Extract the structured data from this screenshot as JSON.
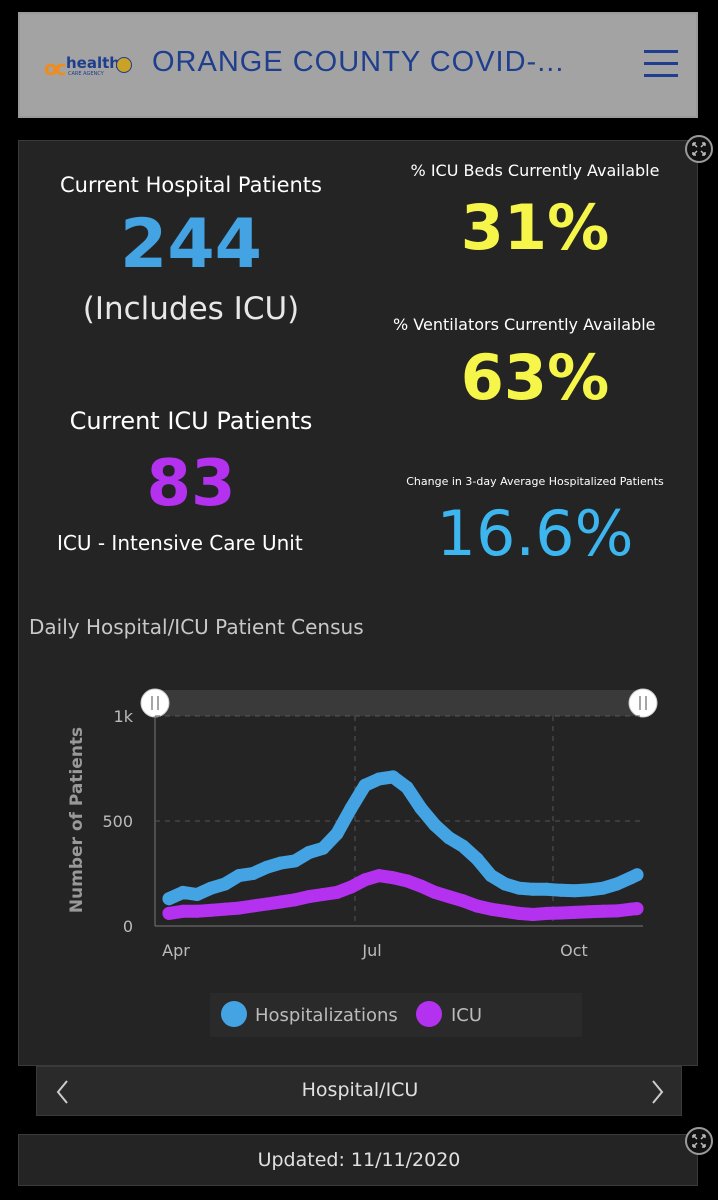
{
  "header": {
    "logo_oc": "oc",
    "logo_text": "health",
    "logo_sub": "CARE AGENCY",
    "title": "ORANGE COUNTY COVID-...",
    "menu_icon": "hamburger-menu-icon",
    "background": "#a3a3a3",
    "title_color": "#1f3e8e"
  },
  "stats": {
    "hospital_label": "Current Hospital Patients",
    "hospital_value": "244",
    "hospital_note": "(Includes ICU)",
    "icu_label": "Current ICU Patients",
    "icu_value": "83",
    "icu_note": "ICU - Intensive Care Unit",
    "icu_beds_label": "% ICU Beds Currently Available",
    "icu_beds_value": "31%",
    "vent_label": "% Ventilators Currently Available",
    "vent_value": "63%",
    "change_label": "Change in 3-day Average Hospitalized Patients",
    "change_value": "16.6%",
    "colors": {
      "blue": "#44a3e2",
      "purple": "#b431f0",
      "yellow": "#f5f54a",
      "cyan": "#3db5ee"
    }
  },
  "chart_title": "Daily Hospital/ICU Patient Census",
  "chart_data": {
    "type": "line",
    "title": "Daily Hospital/ICU Patient Census",
    "ylabel": "Number of Patients",
    "xlabel": "",
    "ylim": [
      0,
      1000
    ],
    "yticks": [
      "0",
      "500",
      "1k"
    ],
    "xticks": [
      "Apr",
      "Jul",
      "Oct"
    ],
    "legend_position": "bottom",
    "series": [
      {
        "name": "Hospitalizations",
        "color": "#44a3e2",
        "points": [
          [
            "2020-03-22",
            130
          ],
          [
            "2020-03-29",
            160
          ],
          [
            "2020-04-05",
            150
          ],
          [
            "2020-04-12",
            180
          ],
          [
            "2020-04-19",
            200
          ],
          [
            "2020-04-26",
            240
          ],
          [
            "2020-05-03",
            250
          ],
          [
            "2020-05-10",
            280
          ],
          [
            "2020-05-17",
            300
          ],
          [
            "2020-05-24",
            310
          ],
          [
            "2020-05-31",
            350
          ],
          [
            "2020-06-07",
            370
          ],
          [
            "2020-06-14",
            440
          ],
          [
            "2020-06-21",
            560
          ],
          [
            "2020-06-28",
            670
          ],
          [
            "2020-07-05",
            700
          ],
          [
            "2020-07-12",
            710
          ],
          [
            "2020-07-19",
            660
          ],
          [
            "2020-07-26",
            560
          ],
          [
            "2020-08-02",
            480
          ],
          [
            "2020-08-09",
            420
          ],
          [
            "2020-08-16",
            380
          ],
          [
            "2020-08-23",
            320
          ],
          [
            "2020-08-30",
            240
          ],
          [
            "2020-09-06",
            200
          ],
          [
            "2020-09-13",
            180
          ],
          [
            "2020-09-20",
            175
          ],
          [
            "2020-09-27",
            175
          ],
          [
            "2020-10-04",
            170
          ],
          [
            "2020-10-11",
            168
          ],
          [
            "2020-10-18",
            172
          ],
          [
            "2020-10-25",
            180
          ],
          [
            "2020-11-01",
            200
          ],
          [
            "2020-11-08",
            230
          ],
          [
            "2020-11-11",
            244
          ]
        ]
      },
      {
        "name": "ICU",
        "color": "#b431f0",
        "points": [
          [
            "2020-03-22",
            60
          ],
          [
            "2020-03-29",
            70
          ],
          [
            "2020-04-05",
            70
          ],
          [
            "2020-04-12",
            75
          ],
          [
            "2020-04-19",
            80
          ],
          [
            "2020-04-26",
            85
          ],
          [
            "2020-05-03",
            95
          ],
          [
            "2020-05-10",
            105
          ],
          [
            "2020-05-17",
            115
          ],
          [
            "2020-05-24",
            125
          ],
          [
            "2020-05-31",
            140
          ],
          [
            "2020-06-07",
            150
          ],
          [
            "2020-06-14",
            160
          ],
          [
            "2020-06-21",
            185
          ],
          [
            "2020-06-28",
            220
          ],
          [
            "2020-07-05",
            240
          ],
          [
            "2020-07-12",
            230
          ],
          [
            "2020-07-19",
            215
          ],
          [
            "2020-07-26",
            190
          ],
          [
            "2020-08-02",
            160
          ],
          [
            "2020-08-09",
            140
          ],
          [
            "2020-08-16",
            120
          ],
          [
            "2020-08-23",
            95
          ],
          [
            "2020-08-30",
            80
          ],
          [
            "2020-09-06",
            70
          ],
          [
            "2020-09-13",
            60
          ],
          [
            "2020-09-20",
            55
          ],
          [
            "2020-09-27",
            60
          ],
          [
            "2020-10-04",
            62
          ],
          [
            "2020-10-11",
            65
          ],
          [
            "2020-10-18",
            68
          ],
          [
            "2020-10-25",
            70
          ],
          [
            "2020-11-01",
            72
          ],
          [
            "2020-11-08",
            80
          ],
          [
            "2020-11-11",
            83
          ]
        ]
      }
    ]
  },
  "nav": {
    "label": "Hospital/ICU",
    "prev_icon": "chevron-left-icon",
    "next_icon": "chevron-right-icon"
  },
  "footer": {
    "updated": "Updated: 11/11/2020"
  }
}
